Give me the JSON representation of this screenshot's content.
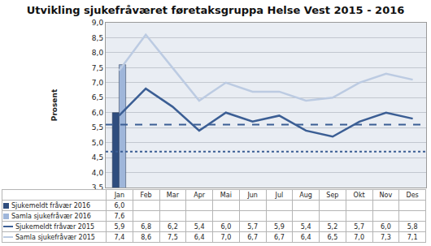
{
  "chart_data": {
    "type": "bar",
    "title": "Utvikling sjukefråværet føretaksgruppa Helse Vest 2015 - 2016",
    "y_label": "Prosent",
    "categories": [
      "Jan",
      "Feb",
      "Mar",
      "Apr",
      "Mai",
      "Jun",
      "Jul",
      "Aug",
      "Sep",
      "Okt",
      "Nov",
      "Des"
    ],
    "series": [
      {
        "name": "Sjukemeldt fråvær 2016",
        "type": "bar",
        "color": "#2F4D7E",
        "values": [
          6.0,
          null,
          null,
          null,
          null,
          null,
          null,
          null,
          null,
          null,
          null,
          null
        ],
        "value_labels": [
          "6,0",
          null,
          null,
          null,
          null,
          null,
          null,
          null,
          null,
          null,
          null,
          null
        ]
      },
      {
        "name": "Samla sjukefråvær 2016",
        "type": "bar",
        "color": "#9FB6DA",
        "values": [
          7.6,
          null,
          null,
          null,
          null,
          null,
          null,
          null,
          null,
          null,
          null,
          null
        ],
        "value_labels": [
          "7,6",
          null,
          null,
          null,
          null,
          null,
          null,
          null,
          null,
          null,
          null,
          null
        ]
      },
      {
        "name": "Sjukemeldt fråvær 2015",
        "type": "line",
        "color": "#3B5E94",
        "line_style": "solid",
        "values": [
          5.9,
          6.8,
          6.2,
          5.4,
          6.0,
          5.7,
          5.9,
          5.4,
          5.2,
          5.7,
          6.0,
          5.8
        ],
        "value_labels": [
          "5,9",
          "6,8",
          "6,2",
          "5,4",
          "6,0",
          "5,7",
          "5,9",
          "5,4",
          "5,2",
          "5,7",
          "6,0",
          "5,8"
        ]
      },
      {
        "name": "Samla sjukefråvær 2015",
        "type": "line",
        "color": "#BCCBE2",
        "line_style": "solid",
        "values": [
          7.4,
          8.6,
          7.5,
          6.4,
          7.0,
          6.7,
          6.7,
          6.4,
          6.5,
          7.0,
          7.3,
          7.1
        ],
        "value_labels": [
          "7,4",
          "8,6",
          "7,5",
          "6,4",
          "7,0",
          "6,7",
          "6,7",
          "6,4",
          "6,5",
          "7,0",
          "7,3",
          "7,1"
        ]
      }
    ],
    "reference_lines": [
      {
        "y": 5.6,
        "line_style": "dashed",
        "color": "#3B5E94"
      },
      {
        "y": 4.7,
        "line_style": "dotted",
        "color": "#3B5E94"
      }
    ],
    "ylim": [
      3.5,
      9.0
    ],
    "yticks": [
      {
        "value": 3.5,
        "label": "3,5"
      },
      {
        "value": 4.0,
        "label": "4,0"
      },
      {
        "value": 4.5,
        "label": "4,5"
      },
      {
        "value": 5.0,
        "label": "5,0"
      },
      {
        "value": 5.5,
        "label": "5,5"
      },
      {
        "value": 6.0,
        "label": "6,0"
      },
      {
        "value": 6.5,
        "label": "6,5"
      },
      {
        "value": 7.0,
        "label": "7,0"
      },
      {
        "value": 7.5,
        "label": "7,5"
      },
      {
        "value": 8.0,
        "label": "8,0"
      },
      {
        "value": 8.5,
        "label": "8,5"
      },
      {
        "value": 9.0,
        "label": "9,0"
      }
    ],
    "grid": true
  }
}
